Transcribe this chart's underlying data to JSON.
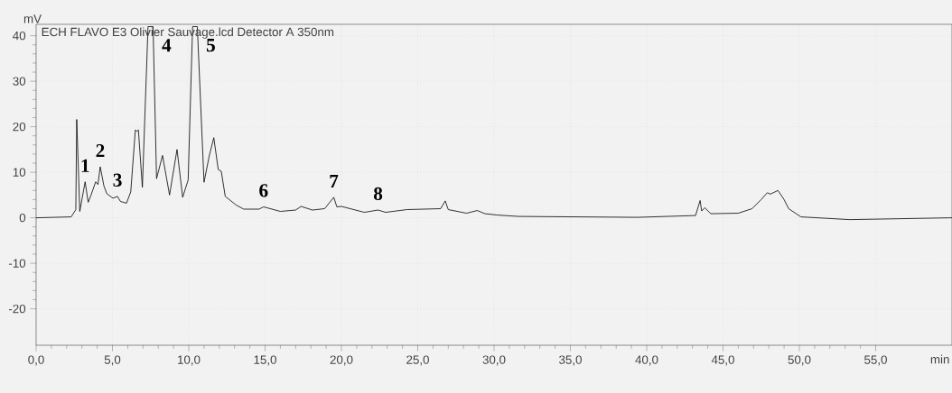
{
  "chart_data": {
    "type": "line",
    "title": "ECH FLAVO E3 Olivier Sauvage.lcd Detector A 350nm",
    "xlabel": "min",
    "ylabel": "mV",
    "x": [
      0,
      2.3,
      2.6,
      2.66,
      2.86,
      3.21,
      3.41,
      3.6,
      3.9,
      4.05,
      4.2,
      4.44,
      4.63,
      5.03,
      5.33,
      5.52,
      5.92,
      6.2,
      6.5,
      6.6,
      6.7,
      6.96,
      7.33,
      7.5,
      7.66,
      7.89,
      8.28,
      8.74,
      9.23,
      9.6,
      9.96,
      10.25,
      10.4,
      10.56,
      11.0,
      11.34,
      11.64,
      11.93,
      12.13,
      12.39,
      13.1,
      13.6,
      14.6,
      14.9,
      16.0,
      17.0,
      17.36,
      18.1,
      18.9,
      19.5,
      19.7,
      20.0,
      21.5,
      22.4,
      22.9,
      24.3,
      26.5,
      26.8,
      27.0,
      28.2,
      28.9,
      29.4,
      30.2,
      31.6,
      39.4,
      43.2,
      43.5,
      43.6,
      43.8,
      44.2,
      46.0,
      46.9,
      47.5,
      47.9,
      48.1,
      48.6,
      49.0,
      49.3,
      50.1,
      53.3,
      60
    ],
    "values": [
      0,
      0.2,
      1.8,
      21.6,
      1.4,
      7.9,
      3.4,
      5.0,
      7.9,
      7.3,
      11.2,
      7.0,
      5.3,
      4.3,
      4.7,
      3.6,
      3.2,
      5.7,
      19.3,
      19.0,
      19.3,
      6.7,
      42,
      null,
      42,
      8.6,
      13.7,
      5.0,
      15.0,
      4.5,
      8.3,
      42,
      null,
      42,
      7.8,
      13.6,
      17.6,
      10.6,
      10.2,
      4.7,
      2.8,
      1.9,
      1.9,
      2.4,
      1.4,
      1.7,
      2.5,
      1.7,
      2.0,
      4.5,
      2.4,
      2.5,
      1.2,
      1.7,
      1.2,
      1.8,
      2.0,
      3.7,
      1.8,
      1.0,
      1.6,
      0.9,
      0.6,
      0.3,
      0.1,
      0.5,
      3.8,
      1.5,
      2.2,
      0.9,
      1.0,
      2.0,
      4.0,
      5.5,
      5.2,
      6.0,
      4.0,
      2.0,
      0.2,
      -0.4,
      0
    ],
    "color": "#000000",
    "xlim": [
      0,
      60
    ],
    "ylim": [
      -28,
      42.5
    ],
    "xticks": [
      {
        "value": 0,
        "label": "0,0"
      },
      {
        "value": 5,
        "label": "5,0"
      },
      {
        "value": 10,
        "label": "10,0"
      },
      {
        "value": 15,
        "label": "15,0"
      },
      {
        "value": 20,
        "label": "20,0"
      },
      {
        "value": 25,
        "label": "25,0"
      },
      {
        "value": 30,
        "label": "30,0"
      },
      {
        "value": 35,
        "label": "35,0"
      },
      {
        "value": 40,
        "label": "40,0"
      },
      {
        "value": 45,
        "label": "45,0"
      },
      {
        "value": 50,
        "label": "50,0"
      },
      {
        "value": 55,
        "label": "55,0"
      }
    ],
    "yticks": [
      -20,
      -10,
      0,
      10,
      20,
      30,
      40
    ],
    "grid": true,
    "marker": "none",
    "line_style": "solid",
    "annotations": [
      {
        "text": "1",
        "x": 3.21,
        "y": 7.9
      },
      {
        "text": "2",
        "x": 4.2,
        "y": 11.2
      },
      {
        "text": "3",
        "x": 5.33,
        "y": 4.7
      },
      {
        "text": "4",
        "x": 7.66,
        "y": 42
      },
      {
        "text": "5",
        "x": 10.56,
        "y": 42
      },
      {
        "text": "6",
        "x": 14.9,
        "y": 2.4
      },
      {
        "text": "7",
        "x": 19.5,
        "y": 4.5
      },
      {
        "text": "8",
        "x": 22.4,
        "y": 1.7
      }
    ]
  }
}
